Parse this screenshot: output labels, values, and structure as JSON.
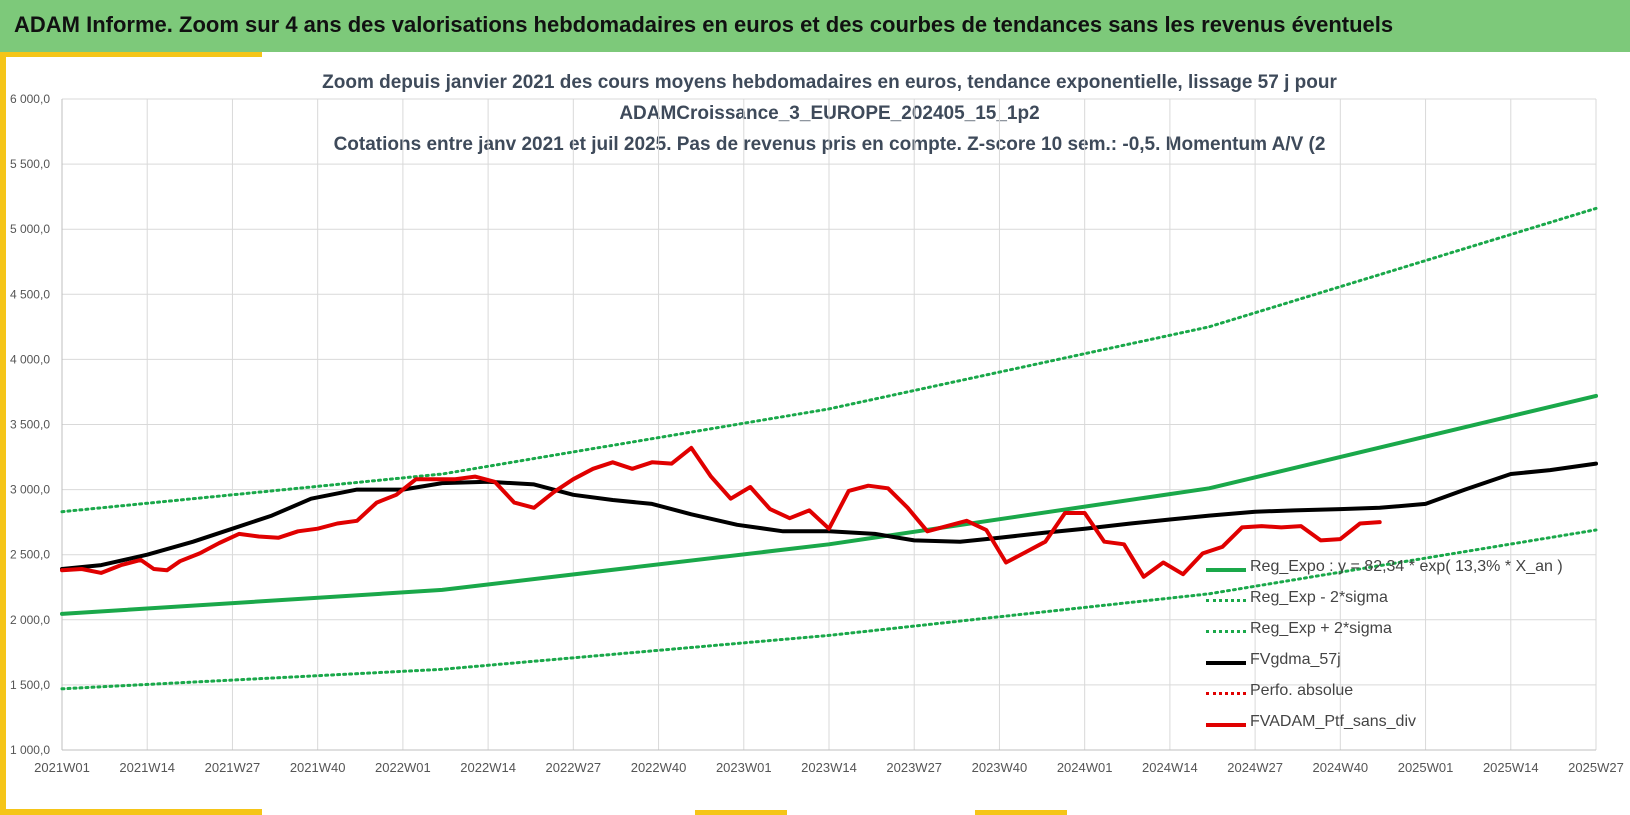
{
  "header": {
    "title": "ADAM Informe. Zoom sur 4 ans des valorisations hebdomadaires en euros et des courbes de tendances sans les revenus éventuels"
  },
  "chart_data": {
    "type": "line",
    "title_lines": [
      "Zoom depuis janvier 2021 des cours moyens hebdomadaires  en euros, tendance exponentielle, lissage 57 j pour",
      "ADAMCroissance_3_EUROPE_202405_15_1p2",
      "Cotations entre janv 2021 et juil 2025. Pas de revenus pris en compte. Z-score 10 sem.: -0,5. Momentum A/V (2"
    ],
    "x_tick_labels": [
      "2021W01",
      "2021W14",
      "2021W27",
      "2021W40",
      "2022W01",
      "2022W14",
      "2022W27",
      "2022W40",
      "2023W01",
      "2023W14",
      "2023W27",
      "2023W40",
      "2024W01",
      "2024W14",
      "2024W27",
      "2024W40",
      "2025W01",
      "2025W14",
      "2025W27"
    ],
    "x_range": [
      0,
      234
    ],
    "y_tick_labels": [
      "1 000,0",
      "1 500,0",
      "2 000,0",
      "2 500,0",
      "3 000,0",
      "3 500,0",
      "4 000,0",
      "4 500,0",
      "5 000,0",
      "5 500,0",
      "6 000,0"
    ],
    "ylim": [
      1000,
      6000
    ],
    "y_step": 500,
    "grid": true,
    "legend_position": "bottom-right",
    "series": [
      {
        "name": "Reg_Expo : y = 82,34 * exp( 13,3% *  X_an )",
        "color": "#1aa84a",
        "style": "solid",
        "width": 4,
        "points": [
          [
            0,
            2045
          ],
          [
            58,
            2230
          ],
          [
            117,
            2580
          ],
          [
            175,
            3010
          ],
          [
            234,
            3720
          ]
        ]
      },
      {
        "name": "Reg_Exp - 2*sigma",
        "color": "#1aa84a",
        "style": "dotted",
        "width": 3,
        "points": [
          [
            0,
            1470
          ],
          [
            58,
            1620
          ],
          [
            117,
            1880
          ],
          [
            175,
            2200
          ],
          [
            234,
            2690
          ]
        ]
      },
      {
        "name": "Reg_Exp + 2*sigma",
        "color": "#1aa84a",
        "style": "dotted",
        "width": 3,
        "points": [
          [
            0,
            2830
          ],
          [
            58,
            3120
          ],
          [
            117,
            3620
          ],
          [
            175,
            4250
          ],
          [
            234,
            5160
          ]
        ]
      },
      {
        "name": "FVgdma_57j",
        "color": "#000000",
        "style": "solid",
        "width": 4,
        "points": [
          [
            0,
            2390
          ],
          [
            6,
            2420
          ],
          [
            13,
            2500
          ],
          [
            20,
            2600
          ],
          [
            26,
            2700
          ],
          [
            32,
            2800
          ],
          [
            38,
            2930
          ],
          [
            45,
            3000
          ],
          [
            52,
            3000
          ],
          [
            58,
            3050
          ],
          [
            65,
            3060
          ],
          [
            72,
            3040
          ],
          [
            78,
            2960
          ],
          [
            84,
            2920
          ],
          [
            90,
            2890
          ],
          [
            96,
            2810
          ],
          [
            103,
            2730
          ],
          [
            110,
            2680
          ],
          [
            117,
            2680
          ],
          [
            124,
            2660
          ],
          [
            130,
            2610
          ],
          [
            137,
            2600
          ],
          [
            143,
            2630
          ],
          [
            150,
            2670
          ],
          [
            156,
            2700
          ],
          [
            163,
            2740
          ],
          [
            169,
            2770
          ],
          [
            175,
            2800
          ],
          [
            182,
            2830
          ],
          [
            188,
            2840
          ],
          [
            195,
            2850
          ],
          [
            201,
            2860
          ],
          [
            208,
            2890
          ],
          [
            214,
            3000
          ],
          [
            221,
            3120
          ],
          [
            227,
            3150
          ],
          [
            234,
            3200
          ]
        ]
      },
      {
        "name": "Perfo. absolue",
        "color": "#e00000",
        "style": "dotted",
        "width": 3,
        "points": []
      },
      {
        "name": "FVADAM_Ptf_sans_div",
        "color": "#e00000",
        "style": "solid",
        "width": 4,
        "points": [
          [
            0,
            2380
          ],
          [
            3,
            2390
          ],
          [
            6,
            2360
          ],
          [
            9,
            2420
          ],
          [
            12,
            2460
          ],
          [
            14,
            2390
          ],
          [
            16,
            2380
          ],
          [
            18,
            2450
          ],
          [
            21,
            2510
          ],
          [
            24,
            2590
          ],
          [
            27,
            2660
          ],
          [
            30,
            2640
          ],
          [
            33,
            2630
          ],
          [
            36,
            2680
          ],
          [
            39,
            2700
          ],
          [
            42,
            2740
          ],
          [
            45,
            2760
          ],
          [
            48,
            2900
          ],
          [
            51,
            2960
          ],
          [
            54,
            3080
          ],
          [
            57,
            3080
          ],
          [
            60,
            3080
          ],
          [
            63,
            3100
          ],
          [
            66,
            3060
          ],
          [
            69,
            2900
          ],
          [
            72,
            2860
          ],
          [
            75,
            2980
          ],
          [
            78,
            3080
          ],
          [
            81,
            3160
          ],
          [
            84,
            3210
          ],
          [
            87,
            3160
          ],
          [
            90,
            3210
          ],
          [
            93,
            3200
          ],
          [
            96,
            3320
          ],
          [
            99,
            3100
          ],
          [
            102,
            2930
          ],
          [
            105,
            3020
          ],
          [
            108,
            2850
          ],
          [
            111,
            2780
          ],
          [
            114,
            2840
          ],
          [
            117,
            2700
          ],
          [
            120,
            2990
          ],
          [
            123,
            3030
          ],
          [
            126,
            3010
          ],
          [
            129,
            2860
          ],
          [
            132,
            2680
          ],
          [
            135,
            2720
          ],
          [
            138,
            2760
          ],
          [
            141,
            2690
          ],
          [
            144,
            2440
          ],
          [
            147,
            2520
          ],
          [
            150,
            2600
          ],
          [
            153,
            2820
          ],
          [
            156,
            2820
          ],
          [
            159,
            2600
          ],
          [
            162,
            2580
          ],
          [
            165,
            2330
          ],
          [
            168,
            2440
          ],
          [
            171,
            2350
          ],
          [
            174,
            2510
          ],
          [
            177,
            2560
          ],
          [
            180,
            2710
          ],
          [
            183,
            2720
          ],
          [
            186,
            2710
          ],
          [
            189,
            2720
          ],
          [
            192,
            2610
          ],
          [
            195,
            2620
          ],
          [
            198,
            2740
          ],
          [
            201,
            2750
          ]
        ]
      }
    ],
    "legend": [
      {
        "label": "Reg_Expo : y = 82,34 * exp( 13,3% *  X_an )"
      },
      {
        "label": "Reg_Exp - 2*sigma"
      },
      {
        "label": "Reg_Exp + 2*sigma"
      },
      {
        "label": "FVgdma_57j"
      },
      {
        "label": "Perfo. absolue"
      },
      {
        "label": "FVADAM_Ptf_sans_div"
      }
    ]
  }
}
